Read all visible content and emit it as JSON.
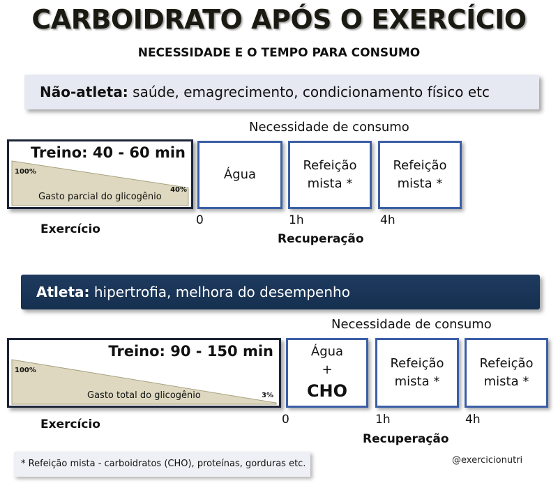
{
  "title": "CARBOIDRATO APÓS O EXERCÍCIO",
  "subtitle": "NECESSIDADE E O TEMPO PARA CONSUMO",
  "non_athlete": {
    "label": "Não-atleta:",
    "desc": " saúde, emagrecimento, condicionamento físico etc",
    "need_label": "Necessidade de consumo",
    "training": "Treino: 40 - 60 min",
    "start_pct": "100%",
    "end_pct": "40%",
    "usage": "Gasto parcial do glicogênio",
    "exercise_label": "Exercício",
    "phase1": "Água",
    "phase2_line1": "Refeição",
    "phase2_line2": "mista *",
    "phase3_line1": "Refeição",
    "phase3_line2": "mista *",
    "t0": "0",
    "t1": "1h",
    "t2": "4h",
    "recovery_label": "Recuperação",
    "remaining_glycogen_fraction": 0.4
  },
  "athlete": {
    "label": "Atleta:",
    "desc": " hipertrofia, melhora do desempenho",
    "need_label": "Necessidade de consumo",
    "training": "Treino: 90 - 150 min",
    "start_pct": "100%",
    "end_pct": "3%",
    "usage": "Gasto total do glicogênio",
    "exercise_label": "Exercício",
    "phase1_line1": "Água",
    "phase1_line2": "+",
    "phase1_line3": "CHO",
    "phase2_line1": "Refeição",
    "phase2_line2": "mista *",
    "phase3_line1": "Refeição",
    "phase3_line2": "mista *",
    "t0": "0",
    "t1": "1h",
    "t2": "4h",
    "recovery_label": "Recuperação",
    "remaining_glycogen_fraction": 0.03
  },
  "footer": "* Refeição mista - carboidratos (CHO), proteínas, gorduras etc.",
  "handle": "@exercicionutri",
  "colors": {
    "banner_light": "#e6e9f1",
    "banner_dark": "#1e3a5f",
    "phase_border": "#3b5fa6",
    "wedge": "#ddd8bf",
    "wedge_edge": "#a8a280"
  }
}
